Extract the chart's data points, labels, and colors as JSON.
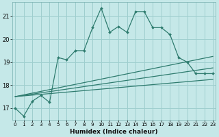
{
  "xlabel": "Humidex (Indice chaleur)",
  "bg_color": "#c5e8e8",
  "grid_color": "#9ecece",
  "line_color": "#2e7b6e",
  "x_main": [
    0,
    1,
    2,
    3,
    4,
    5,
    6,
    7,
    8,
    9,
    10,
    11,
    12,
    13,
    14,
    15,
    16,
    17,
    18,
    19,
    20,
    21,
    22,
    23
  ],
  "y_main": [
    17.0,
    16.65,
    17.3,
    17.55,
    17.25,
    19.2,
    19.1,
    19.5,
    19.5,
    20.5,
    21.35,
    20.3,
    20.55,
    20.3,
    21.2,
    21.2,
    20.5,
    20.5,
    20.2,
    19.2,
    19.0,
    18.5,
    18.5,
    18.5
  ],
  "smooth_lines": [
    {
      "x": [
        0,
        23
      ],
      "y": [
        17.5,
        19.25
      ]
    },
    {
      "x": [
        0,
        23
      ],
      "y": [
        17.5,
        18.75
      ]
    },
    {
      "x": [
        0,
        23
      ],
      "y": [
        17.5,
        18.25
      ]
    }
  ],
  "ylim": [
    16.5,
    21.6
  ],
  "xlim": [
    -0.3,
    23.3
  ],
  "yticks": [
    17,
    18,
    19,
    20,
    21
  ],
  "xticks": [
    0,
    1,
    2,
    3,
    4,
    5,
    6,
    7,
    8,
    9,
    10,
    11,
    12,
    13,
    14,
    15,
    16,
    17,
    18,
    19,
    20,
    21,
    22,
    23
  ]
}
